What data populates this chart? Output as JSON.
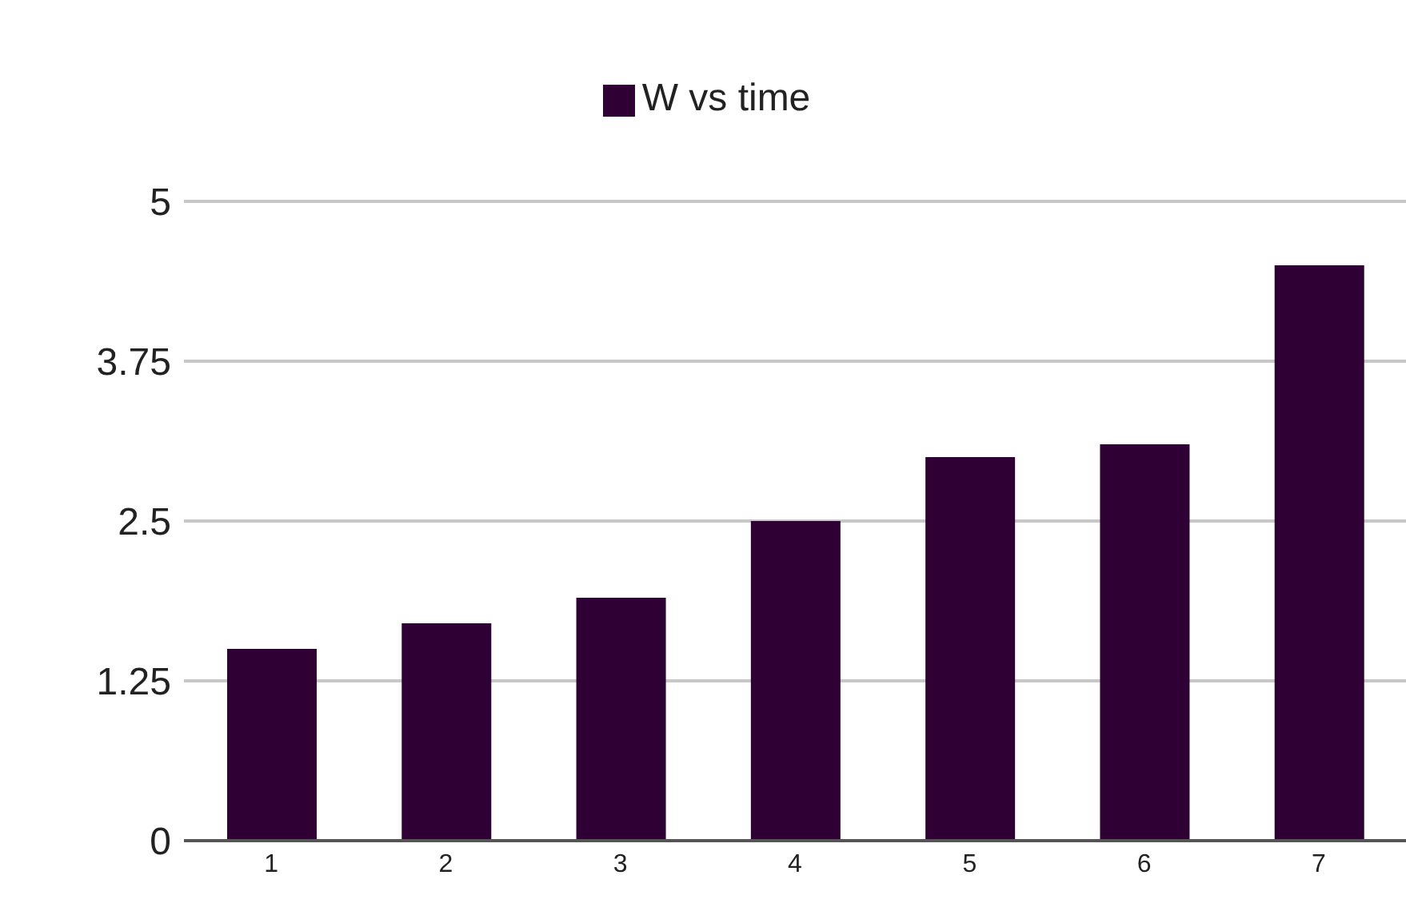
{
  "chart_data": {
    "type": "bar",
    "categories": [
      "1",
      "2",
      "3",
      "4",
      "5",
      "6",
      "7"
    ],
    "series": [
      {
        "name": "W vs time",
        "color": "#2e0033",
        "values": [
          1.5,
          1.7,
          1.9,
          2.5,
          3.0,
          3.1,
          4.5
        ]
      }
    ],
    "ylim": [
      0,
      5
    ],
    "yticks": [
      0,
      1.25,
      2.5,
      3.75,
      5
    ],
    "grid": "y",
    "legend": "top"
  }
}
